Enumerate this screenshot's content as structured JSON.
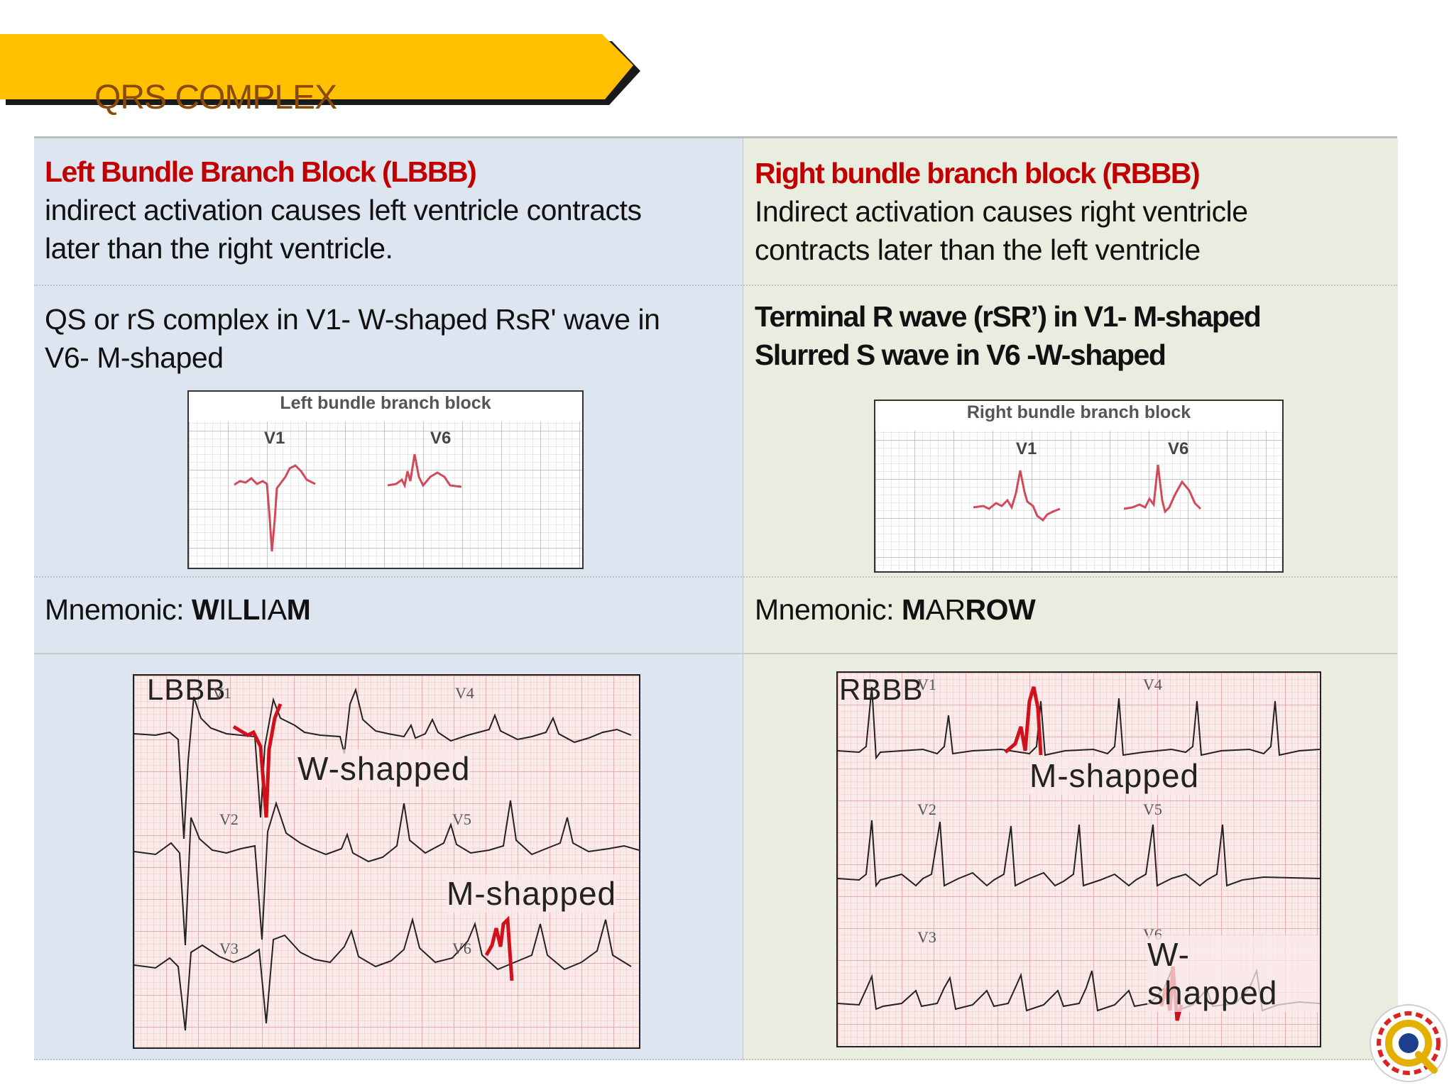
{
  "slide": {
    "title": "QRS COMPLEX",
    "colors": {
      "banner": "#ffc000",
      "heading": "#c00000",
      "ecg_highlight": "#d0101a"
    }
  },
  "lbbb": {
    "heading": "Left Bundle Branch Block (LBBB)",
    "description_line1": "indirect activation causes left ventricle contracts",
    "description_line2": "later than the right ventricle.",
    "criteria_line1": "QS or rS complex in V1- W-shaped RsR' wave in",
    "criteria_line2": "V6- M-shaped",
    "figure": {
      "title": "Left bundle branch block",
      "lead1": "V1",
      "lead2": "V6"
    },
    "mnemonic_label": "Mnemonic: ",
    "mnemonic_parts": [
      "W",
      "I",
      "L",
      "L",
      "I",
      "A",
      "M"
    ],
    "strip": {
      "title": "LBBB",
      "annotation1": "W-shapped",
      "annotation2": "M-shapped",
      "leads": [
        "V1",
        "V2",
        "V3",
        "V4",
        "V5",
        "V6"
      ]
    }
  },
  "rbbb": {
    "heading": "Right bundle branch block (RBBB)",
    "description_line1": "Indirect activation causes right ventricle",
    "description_line2": "contracts later than the left ventricle",
    "criteria_line1": "Terminal R wave (rSR’) in V1- M-shaped",
    "criteria_line2": "Slurred S wave in V6 -W-shaped",
    "figure": {
      "title": "Right bundle branch block",
      "lead1": "V1",
      "lead2": "V6"
    },
    "mnemonic_label": "Mnemonic: ",
    "mnemonic_parts": [
      "M",
      "A",
      "R",
      "R",
      "O",
      "W"
    ],
    "strip": {
      "title": "RBBB",
      "annotation1": "M-shapped",
      "annotation2": "W-shapped",
      "leads": [
        "V1",
        "V2",
        "V3",
        "V4",
        "V5",
        "V6"
      ]
    }
  },
  "logo": {
    "icon": "institution-seal-icon"
  }
}
